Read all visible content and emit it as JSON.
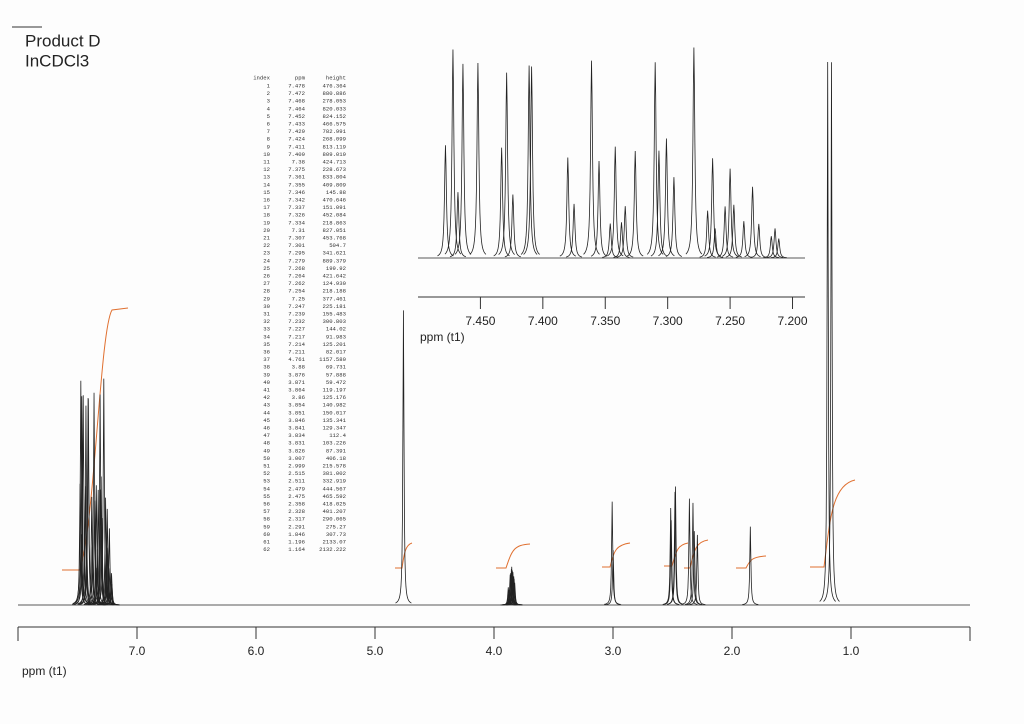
{
  "chart_data": [
    {
      "type": "line",
      "title": "Product D",
      "subtitle": "InCDCl3",
      "x_label": "ppm (t1)",
      "xlim": [
        8,
        0
      ],
      "ylim": [
        0,
        2200
      ],
      "color": "#222222",
      "xticks": [
        {
          "value": 7,
          "label": "7.0"
        },
        {
          "value": 6,
          "label": "6.0"
        },
        {
          "value": 5,
          "label": "5.0"
        },
        {
          "value": 4,
          "label": "4.0"
        },
        {
          "value": 3,
          "label": "3.0"
        },
        {
          "value": 2,
          "label": "2.0"
        },
        {
          "value": 1,
          "label": "1.0"
        }
      ],
      "peak_table": {
        "header": [
          "index",
          "ppm",
          "height"
        ],
        "rows": [
          [
            "1",
            "7.478",
            "476.364"
          ],
          [
            "2",
            "7.472",
            "880.886"
          ],
          [
            "3",
            "7.468",
            "278.053"
          ],
          [
            "4",
            "7.464",
            "820.033"
          ],
          [
            "5",
            "7.452",
            "824.152"
          ],
          [
            "6",
            "7.433",
            "466.575"
          ],
          [
            "7",
            "7.429",
            "782.991"
          ],
          [
            "8",
            "7.424",
            "268.099"
          ],
          [
            "9",
            "7.411",
            "813.119"
          ],
          [
            "10",
            "7.409",
            "809.019"
          ],
          [
            "11",
            "7.38",
            "424.713"
          ],
          [
            "12",
            "7.375",
            "228.673"
          ],
          [
            "13",
            "7.361",
            "833.804"
          ],
          [
            "14",
            "7.355",
            "409.809"
          ],
          [
            "15",
            "7.346",
            "145.88"
          ],
          [
            "16",
            "7.342",
            "470.646"
          ],
          [
            "17",
            "7.337",
            "151.091"
          ],
          [
            "18",
            "7.326",
            "452.084"
          ],
          [
            "19",
            "7.334",
            "218.863"
          ],
          [
            "20",
            "7.31",
            "827.051"
          ],
          [
            "21",
            "7.307",
            "453.768"
          ],
          [
            "22",
            "7.301",
            "504.7"
          ],
          [
            "23",
            "7.295",
            "341.621"
          ],
          [
            "24",
            "7.279",
            "889.379"
          ],
          [
            "25",
            "7.268",
            "199.92"
          ],
          [
            "26",
            "7.264",
            "421.642"
          ],
          [
            "27",
            "7.262",
            "124.930"
          ],
          [
            "28",
            "7.254",
            "218.188"
          ],
          [
            "29",
            "7.25",
            "377.461"
          ],
          [
            "30",
            "7.247",
            "225.181"
          ],
          [
            "31",
            "7.239",
            "155.483"
          ],
          [
            "32",
            "7.232",
            "300.803"
          ],
          [
            "33",
            "7.227",
            "144.02"
          ],
          [
            "34",
            "7.217",
            "91.983"
          ],
          [
            "35",
            "7.214",
            "125.201"
          ],
          [
            "36",
            "7.211",
            "82.017"
          ],
          [
            "37",
            "4.761",
            "1157.580"
          ],
          [
            "38",
            "3.88",
            "69.731"
          ],
          [
            "39",
            "3.876",
            "57.888"
          ],
          [
            "40",
            "3.871",
            "59.472"
          ],
          [
            "41",
            "3.864",
            "119.197"
          ],
          [
            "42",
            "3.86",
            "125.176"
          ],
          [
            "43",
            "3.854",
            "140.982"
          ],
          [
            "44",
            "3.851",
            "150.017"
          ],
          [
            "45",
            "3.846",
            "135.341"
          ],
          [
            "46",
            "3.841",
            "129.347"
          ],
          [
            "47",
            "3.834",
            "112.4"
          ],
          [
            "48",
            "3.831",
            "103.226"
          ],
          [
            "49",
            "3.826",
            "87.391"
          ],
          [
            "50",
            "3.007",
            "406.18"
          ],
          [
            "51",
            "2.999",
            "215.578"
          ],
          [
            "52",
            "2.515",
            "381.002"
          ],
          [
            "53",
            "2.511",
            "332.919"
          ],
          [
            "54",
            "2.479",
            "444.567"
          ],
          [
            "55",
            "2.475",
            "465.592"
          ],
          [
            "56",
            "2.358",
            "418.025"
          ],
          [
            "57",
            "2.328",
            "401.207"
          ],
          [
            "58",
            "2.317",
            "290.065"
          ],
          [
            "59",
            "2.291",
            "275.27"
          ],
          [
            "60",
            "1.846",
            "307.73"
          ],
          [
            "61",
            "1.196",
            "2133.07"
          ],
          [
            "62",
            "1.164",
            "2132.222"
          ]
        ]
      }
    },
    {
      "type": "line",
      "x_label": "ppm (t1)",
      "xlim": [
        7.5,
        7.19
      ],
      "ylim": [
        0,
        900
      ],
      "color": "#222222",
      "xticks": [
        {
          "value": 7.45,
          "label": "7.450"
        },
        {
          "value": 7.4,
          "label": "7.400"
        },
        {
          "value": 7.35,
          "label": "7.350"
        },
        {
          "value": 7.3,
          "label": "7.300"
        },
        {
          "value": 7.25,
          "label": "7.250"
        },
        {
          "value": 7.2,
          "label": "7.200"
        }
      ]
    }
  ]
}
